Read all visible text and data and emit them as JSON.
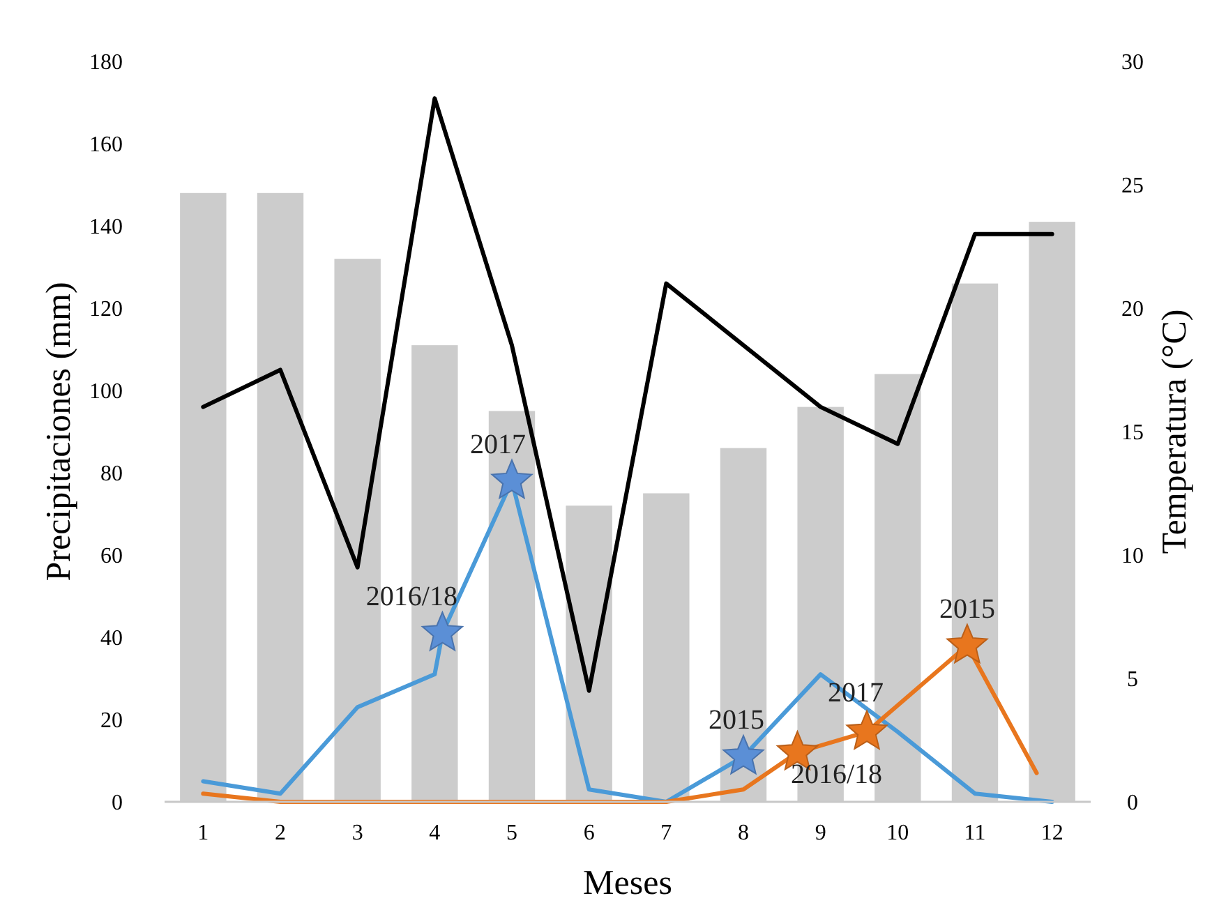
{
  "chart_data": {
    "type": "bar",
    "xlabel": "Meses",
    "ylabel": "Precipitaciones (mm)",
    "y2label": "Temperatura (°C)",
    "x": [
      1,
      2,
      3,
      4,
      5,
      6,
      7,
      8,
      9,
      10,
      11,
      12
    ],
    "xlim": [
      0.5,
      12.5
    ],
    "xticks": [
      1,
      2,
      3,
      4,
      5,
      6,
      7,
      8,
      9,
      10,
      11,
      12
    ],
    "ylim": [
      0,
      180
    ],
    "yticks": [
      0,
      20,
      40,
      60,
      80,
      100,
      120,
      140,
      160,
      180
    ],
    "y2lim": [
      0,
      30
    ],
    "y2ticks": [
      0,
      5,
      10,
      15,
      20,
      25,
      30
    ],
    "series": [
      {
        "color": "#cccccc",
        "values": [
          148,
          148,
          132,
          111,
          95,
          72,
          75,
          86,
          96,
          104,
          126,
          141
        ]
      },
      {
        "type": "line",
        "axis": "y2",
        "color": "#000000",
        "marker": "none",
        "values": [
          16,
          17.5,
          9.5,
          28.5,
          18.5,
          4.5,
          21,
          18.5,
          16,
          14.5,
          23,
          23
        ]
      },
      {
        "type": "line",
        "color": "#4a9ad8",
        "marker": "none",
        "x": [
          1,
          2,
          3,
          4,
          4.1,
          5,
          6,
          7,
          8,
          9,
          10,
          11,
          12
        ],
        "values": [
          5,
          2,
          23,
          31,
          41,
          78,
          3,
          0,
          11,
          31,
          17,
          2,
          0
        ]
      },
      {
        "type": "line",
        "color": "#e8761e",
        "marker": "none",
        "x": [
          1,
          2,
          3,
          4,
          5,
          6,
          7,
          8,
          8.7,
          9.6,
          10.9,
          11.8
        ],
        "values": [
          2,
          0,
          0,
          0,
          0,
          0,
          0,
          3,
          12,
          17,
          38,
          7
        ]
      },
      {
        "type": "scatter",
        "color": "#5b8fd6",
        "marker": "star",
        "x": [
          4.1,
          5,
          8
        ],
        "values": [
          41,
          78,
          11
        ]
      },
      {
        "type": "scatter",
        "color": "#e8761e",
        "marker": "star",
        "x": [
          8.7,
          9.6,
          10.9
        ],
        "values": [
          12,
          17,
          38
        ]
      }
    ],
    "annotations": [
      {
        "text": "2016/18",
        "x": 4.1,
        "y": 41
      },
      {
        "text": "2017",
        "x": 5,
        "y": 78
      },
      {
        "text": "2015",
        "x": 8,
        "y": 11
      },
      {
        "text": "2016/18",
        "x": 8.7,
        "y": 12
      },
      {
        "text": "2017",
        "x": 9.6,
        "y": 17
      },
      {
        "text": "2015",
        "x": 10.9,
        "y": 38
      }
    ]
  }
}
